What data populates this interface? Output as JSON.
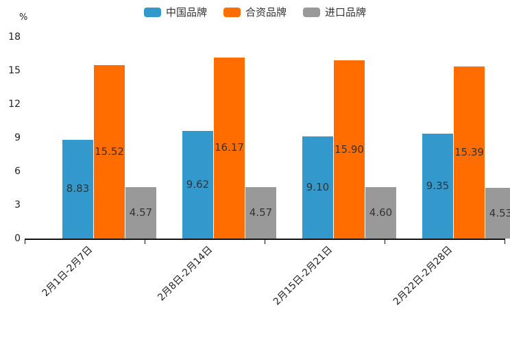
{
  "legend": {
    "items": [
      {
        "label": "中国品牌",
        "color": "#3398CC"
      },
      {
        "label": "合资品牌",
        "color": "#FF6D00"
      },
      {
        "label": "进口品牌",
        "color": "#999999"
      }
    ]
  },
  "chart_data": {
    "type": "bar",
    "title": "",
    "ylabel": "%",
    "unit_label": "%",
    "categories": [
      "2月1日-2月7日",
      "2月8日-2月14日",
      "2月15日-2月21日",
      "2月22日-2月28日"
    ],
    "series": [
      {
        "name": "中国品牌",
        "color": "#3398CC",
        "values": [
          8.83,
          9.62,
          9.1,
          9.35
        ],
        "labels": [
          "8.83",
          "9.62",
          "9.10",
          "9.35"
        ]
      },
      {
        "name": "合资品牌",
        "color": "#FF6D00",
        "values": [
          15.52,
          16.17,
          15.9,
          15.39
        ],
        "labels": [
          "15.52",
          "16.17",
          "15.90",
          "15.39"
        ]
      },
      {
        "name": "进口品牌",
        "color": "#999999",
        "values": [
          4.57,
          4.57,
          4.6,
          4.53
        ],
        "labels": [
          "4.57",
          "4.57",
          "4.60",
          "4.53"
        ]
      }
    ],
    "ylim": [
      0,
      18
    ],
    "yticks": [
      0,
      3,
      6,
      9,
      12,
      15,
      18
    ],
    "ytick_labels": [
      "0",
      "3",
      "6",
      "9",
      "12",
      "15",
      "18"
    ],
    "grid": false,
    "legend_position": "top",
    "value_labels": true,
    "text_color": "#333333",
    "axis_color": "#111111"
  }
}
